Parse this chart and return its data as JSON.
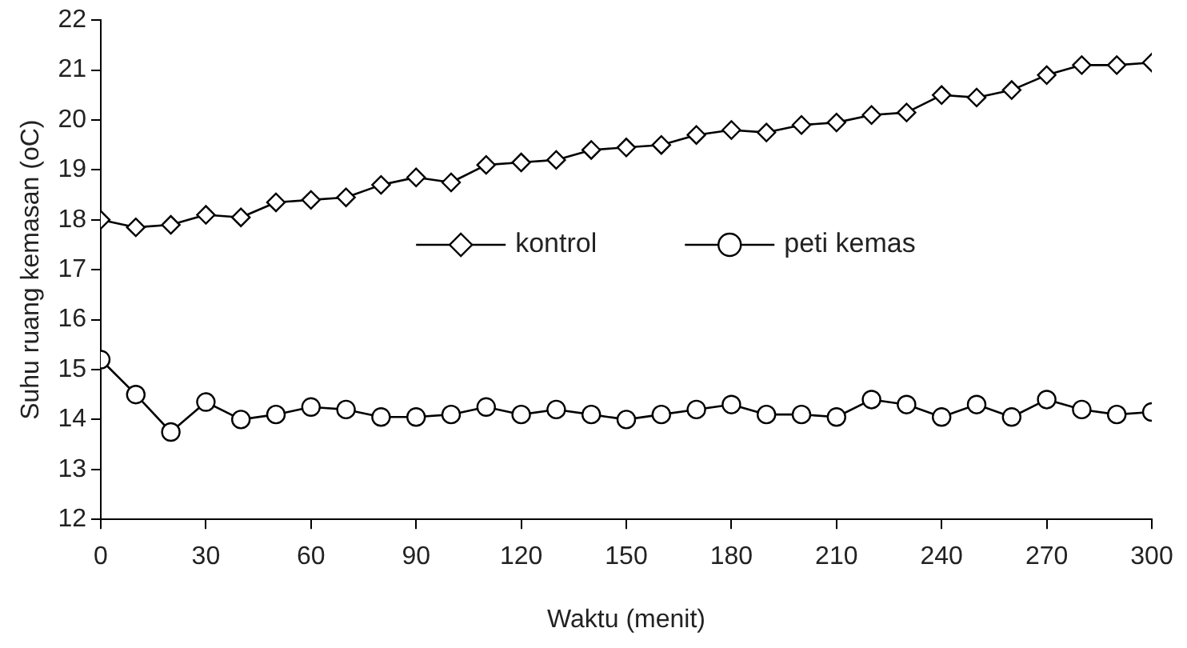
{
  "chart_data": {
    "type": "line",
    "xlabel": "Waktu (menit)",
    "ylabel": "Suhu ruang kemasan (oC)",
    "x": [
      0,
      10,
      20,
      30,
      40,
      50,
      60,
      70,
      80,
      90,
      100,
      110,
      120,
      130,
      140,
      150,
      160,
      170,
      180,
      190,
      200,
      210,
      220,
      230,
      240,
      250,
      260,
      270,
      280,
      290,
      300
    ],
    "series": [
      {
        "name": "kontrol",
        "color": "#000000",
        "marker": "diamond",
        "values": [
          18.0,
          17.85,
          17.9,
          18.1,
          18.05,
          18.35,
          18.4,
          18.45,
          18.7,
          18.85,
          18.75,
          19.1,
          19.15,
          19.2,
          19.4,
          19.45,
          19.5,
          19.7,
          19.8,
          19.75,
          19.9,
          19.95,
          20.1,
          20.15,
          20.5,
          20.45,
          20.6,
          20.9,
          21.1,
          21.1,
          21.15
        ]
      },
      {
        "name": "peti kemas",
        "color": "#000000",
        "marker": "circle",
        "values": [
          15.2,
          14.5,
          13.75,
          14.35,
          14.0,
          14.1,
          14.25,
          14.2,
          14.05,
          14.05,
          14.1,
          14.25,
          14.1,
          14.2,
          14.1,
          14.0,
          14.1,
          14.2,
          14.3,
          14.1,
          14.1,
          14.05,
          14.4,
          14.3,
          14.05,
          14.3,
          14.05,
          14.4,
          14.2,
          14.1,
          14.15
        ]
      }
    ],
    "xlim": [
      0,
      300
    ],
    "xticks": [
      0,
      30,
      60,
      90,
      120,
      150,
      180,
      210,
      240,
      270,
      300
    ],
    "ylim": [
      12,
      22
    ],
    "yticks": [
      12,
      13,
      14,
      15,
      16,
      17,
      18,
      19,
      20,
      21,
      22
    ],
    "grid": false,
    "legend": "right"
  }
}
